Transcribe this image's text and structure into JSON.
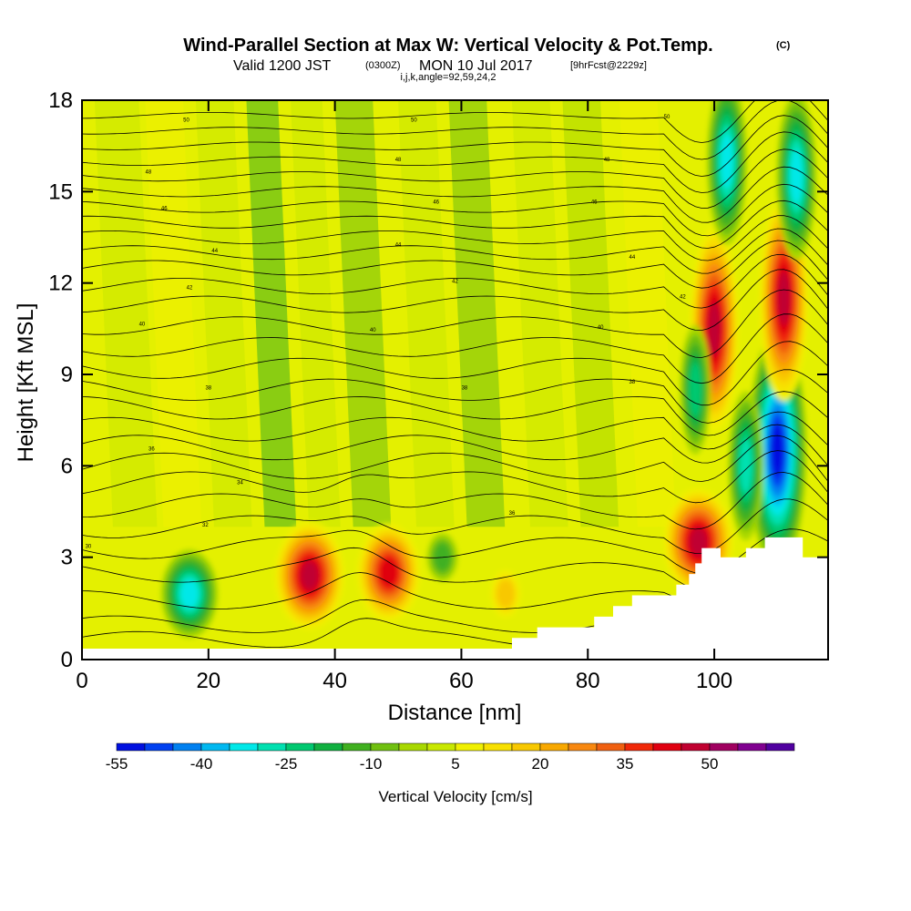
{
  "figure": {
    "title_main": "Wind-Parallel Section at Max W: Vertical Velocity & Pot.Temp.",
    "title_mark": "(C)",
    "subtitle_a": "Valid 1200 JST",
    "subtitle_b": "(0300Z)",
    "subtitle_c": "MON 10 Jul 2017",
    "subtitle_d": "[9hrFcst@2229z]",
    "params": "i,j,k,angle=92,59,24,2"
  },
  "chart_data": {
    "type": "heatmap",
    "xlabel": "Distance [nm]",
    "ylabel": "Height [Kft MSL]",
    "xlim": [
      0,
      118
    ],
    "ylim": [
      0,
      18
    ],
    "x_ticks": [
      "0",
      "20",
      "40",
      "60",
      "80",
      "100"
    ],
    "y_ticks": [
      "0",
      "3",
      "6",
      "9",
      "12",
      "15",
      "18"
    ],
    "colorbar": {
      "label": "Vertical Velocity [cm/s]",
      "tick_labels": [
        "-55",
        "-40",
        "-25",
        "-10",
        "5",
        "20",
        "35",
        "50"
      ],
      "levels": [
        -55,
        -50,
        -45,
        -40,
        -35,
        -30,
        -25,
        -20,
        -15,
        -10,
        -5,
        0,
        5,
        10,
        15,
        20,
        25,
        30,
        35,
        40,
        45,
        50,
        55,
        60
      ],
      "colors": [
        "#0010e0",
        "#0040f0",
        "#0080f0",
        "#00b8f0",
        "#00e8e8",
        "#00e0b0",
        "#00c870",
        "#10b040",
        "#40b020",
        "#70c010",
        "#a8d800",
        "#c8e800",
        "#f0f000",
        "#f8e000",
        "#f8c800",
        "#f8a800",
        "#f88810",
        "#f06010",
        "#f02808",
        "#e00010",
        "#c00030",
        "#a00060",
        "#800090",
        "#5000a0"
      ]
    },
    "terrain": [
      [
        0,
        0
      ],
      [
        68,
        0
      ],
      [
        68,
        0.35
      ],
      [
        72,
        0.35
      ],
      [
        72,
        0.7
      ],
      [
        81,
        0.7
      ],
      [
        81,
        1.05
      ],
      [
        84,
        1.05
      ],
      [
        84,
        1.4
      ],
      [
        87,
        1.4
      ],
      [
        87,
        1.75
      ],
      [
        94,
        1.75
      ],
      [
        94,
        2.1
      ],
      [
        96,
        2.1
      ],
      [
        96,
        2.45
      ],
      [
        97,
        2.45
      ],
      [
        97,
        2.8
      ],
      [
        98,
        2.8
      ],
      [
        98,
        3.3
      ],
      [
        101,
        3.3
      ],
      [
        101,
        3.0
      ],
      [
        105,
        3.0
      ],
      [
        105,
        3.3
      ],
      [
        108,
        3.3
      ],
      [
        108,
        3.65
      ],
      [
        114,
        3.65
      ],
      [
        114,
        3.0
      ],
      [
        118,
        3.0
      ],
      [
        118,
        0
      ]
    ],
    "velocity_features": [
      {
        "x": 17,
        "z": 1.8,
        "value": -35
      },
      {
        "x": 36,
        "z": 2.4,
        "value": 45
      },
      {
        "x": 48.5,
        "z": 2.5,
        "value": 40
      },
      {
        "x": 57,
        "z": 3.0,
        "value": -15
      },
      {
        "x": 67,
        "z": 1.8,
        "value": 15
      },
      {
        "x": 97.5,
        "z": 3.5,
        "value": 45
      },
      {
        "x": 100,
        "z": 10.5,
        "value": 45
      },
      {
        "x": 97,
        "z": 8.5,
        "value": -25
      },
      {
        "x": 102,
        "z": 16.0,
        "value": -35
      },
      {
        "x": 110,
        "z": 6.5,
        "value": -55
      },
      {
        "x": 111,
        "z": 11.5,
        "value": 45
      },
      {
        "x": 113,
        "z": 15.5,
        "value": -35
      },
      {
        "x": 105,
        "z": 6.0,
        "value": -30
      }
    ],
    "theta_contours": {
      "levels": [
        30,
        32,
        34,
        36,
        38,
        40,
        42,
        44,
        46,
        48,
        50
      ],
      "labels": [
        {
          "text": "30",
          "x": 1,
          "z": 3.3
        },
        {
          "text": "32",
          "x": 19.5,
          "z": 4.0
        },
        {
          "text": "34",
          "x": 25,
          "z": 5.4
        },
        {
          "text": "36",
          "x": 11,
          "z": 6.5
        },
        {
          "text": "36",
          "x": 68,
          "z": 4.4
        },
        {
          "text": "38",
          "x": 20,
          "z": 8.5
        },
        {
          "text": "38",
          "x": 60.5,
          "z": 8.5
        },
        {
          "text": "38",
          "x": 87,
          "z": 8.7
        },
        {
          "text": "40",
          "x": 9.5,
          "z": 10.6
        },
        {
          "text": "40",
          "x": 46,
          "z": 10.4
        },
        {
          "text": "40",
          "x": 82,
          "z": 10.5
        },
        {
          "text": "42",
          "x": 17,
          "z": 11.8
        },
        {
          "text": "42",
          "x": 59,
          "z": 12.0
        },
        {
          "text": "42",
          "x": 95,
          "z": 11.5
        },
        {
          "text": "44",
          "x": 21,
          "z": 13.0
        },
        {
          "text": "44",
          "x": 50,
          "z": 13.2
        },
        {
          "text": "44",
          "x": 87,
          "z": 12.8
        },
        {
          "text": "46",
          "x": 13,
          "z": 14.4
        },
        {
          "text": "46",
          "x": 56,
          "z": 14.6
        },
        {
          "text": "46",
          "x": 81,
          "z": 14.6
        },
        {
          "text": "48",
          "x": 10.5,
          "z": 15.6
        },
        {
          "text": "48",
          "x": 50,
          "z": 16.0
        },
        {
          "text": "48",
          "x": 83,
          "z": 16.0
        },
        {
          "text": "50",
          "x": 16.5,
          "z": 17.3
        },
        {
          "text": "50",
          "x": 52.5,
          "z": 17.3
        },
        {
          "text": "50",
          "x": 92.5,
          "z": 17.4
        }
      ]
    }
  }
}
